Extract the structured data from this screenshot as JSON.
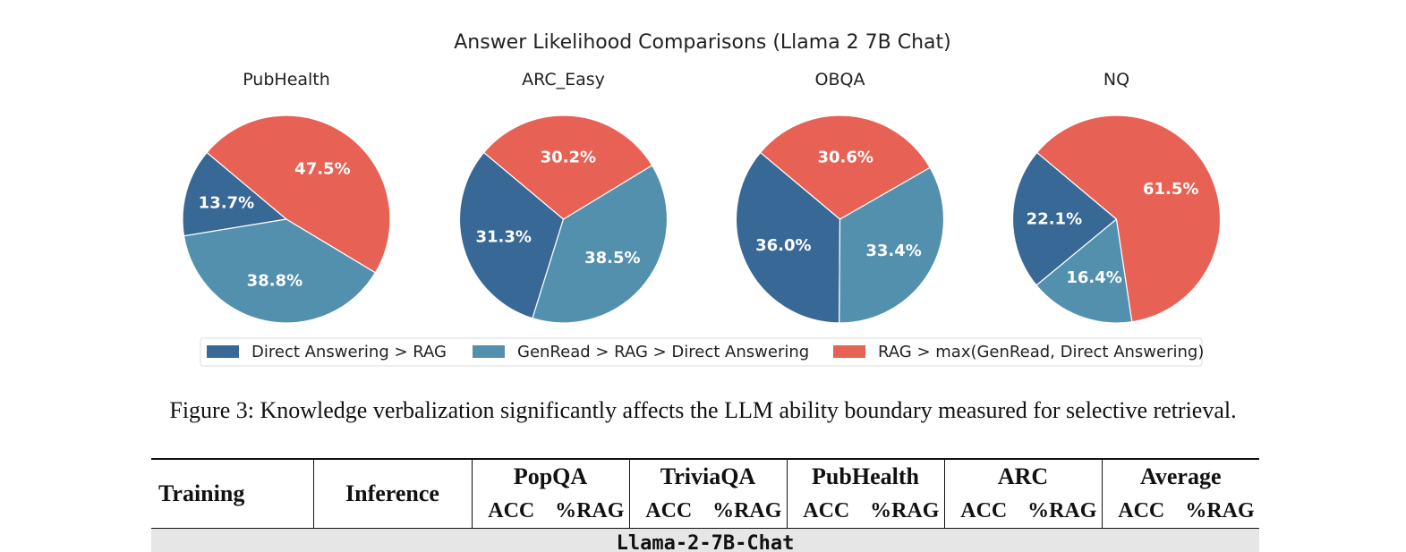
{
  "figure": {
    "title": "Answer Likelihood Comparisons (Llama 2 7B Chat)",
    "legend": {
      "placement": "bottom-center",
      "items": [
        {
          "label": "Direct Answering > RAG",
          "color": "#376896"
        },
        {
          "label": "GenRead > RAG > Direct Answering",
          "color": "#5290ae"
        },
        {
          "label": "RAG > max(GenRead, Direct Answering)",
          "color": "#e76154"
        }
      ]
    }
  },
  "chart_data": [
    {
      "type": "pie",
      "title": "PubHealth",
      "categories": [
        "Direct Answering > RAG",
        "GenRead > RAG > Direct Answering",
        "RAG > max(GenRead, Direct Answering)"
      ],
      "values": [
        13.7,
        38.8,
        47.5
      ],
      "labels": [
        "13.7%",
        "38.8%",
        "47.5%"
      ]
    },
    {
      "type": "pie",
      "title": "ARC_Easy",
      "categories": [
        "Direct Answering > RAG",
        "GenRead > RAG > Direct Answering",
        "RAG > max(GenRead, Direct Answering)"
      ],
      "values": [
        31.3,
        38.5,
        30.2
      ],
      "labels": [
        "31.3%",
        "38.5%",
        "30.2%"
      ]
    },
    {
      "type": "pie",
      "title": "OBQA",
      "categories": [
        "Direct Answering > RAG",
        "GenRead > RAG > Direct Answering",
        "RAG > max(GenRead, Direct Answering)"
      ],
      "values": [
        36.0,
        33.4,
        30.6
      ],
      "labels": [
        "36.0%",
        "33.4%",
        "30.6%"
      ]
    },
    {
      "type": "pie",
      "title": "NQ",
      "categories": [
        "Direct Answering > RAG",
        "GenRead > RAG > Direct Answering",
        "RAG > max(GenRead, Direct Answering)"
      ],
      "values": [
        22.1,
        16.4,
        61.5
      ],
      "labels": [
        "22.1%",
        "16.4%",
        "61.5%"
      ]
    }
  ],
  "caption": "Figure 3: Knowledge verbalization significantly affects the LLM ability boundary measured for selective retrieval.",
  "table": {
    "headers": {
      "training": "Training",
      "inference": "Inference",
      "groups": [
        "PopQA",
        "TriviaQA",
        "PubHealth",
        "ARC",
        "Average"
      ],
      "sub": [
        "ACC",
        "%RAG"
      ]
    },
    "first_row": "Llama-2-7B-Chat"
  }
}
